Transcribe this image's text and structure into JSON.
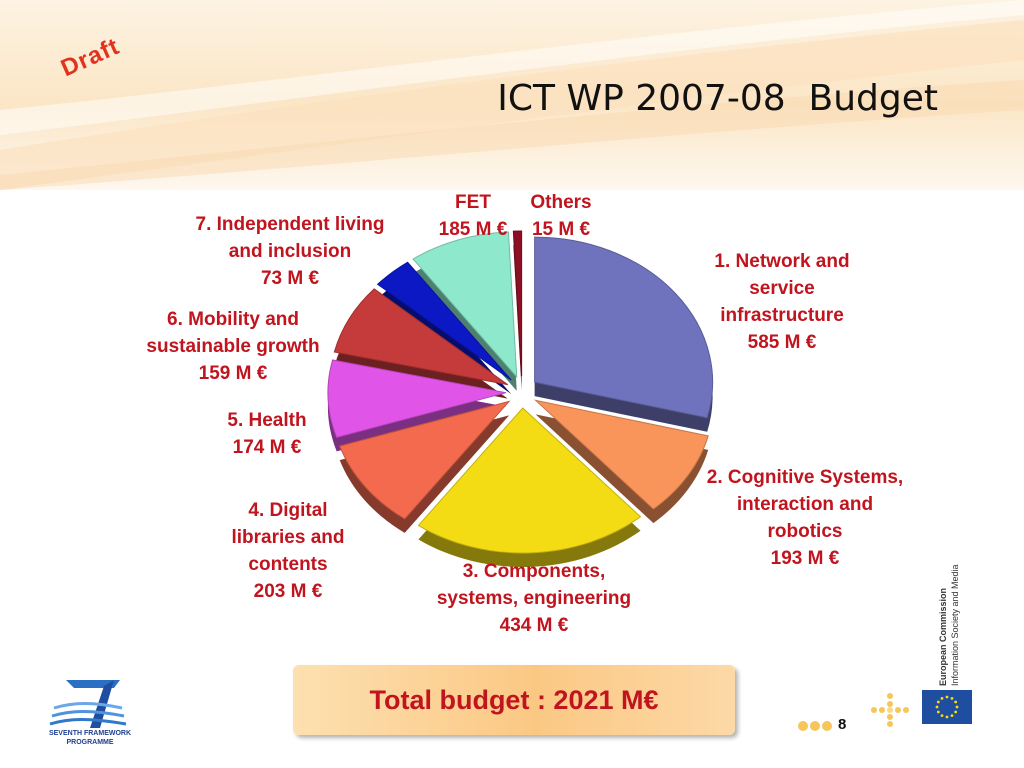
{
  "header": {
    "draft_label": "Draft",
    "title": "ICT WP 2007-08  Budget"
  },
  "chart_data": {
    "type": "pie",
    "title": "",
    "unit": "M €",
    "slices": [
      {
        "label": "1. Network and service infrastructure",
        "value": 585,
        "value_label": "585 M €",
        "color": "#6f73be"
      },
      {
        "label": "2. Cognitive Systems, interaction and robotics",
        "value": 193,
        "value_label": "193 M €",
        "color": "#f9945a"
      },
      {
        "label": "3. Components, systems, engineering",
        "value": 434,
        "value_label": "434 M €",
        "color": "#f4dc14"
      },
      {
        "label": "4. Digital libraries and contents",
        "value": 203,
        "value_label": "203 M €",
        "color": "#f46a4e"
      },
      {
        "label": "5. Health",
        "value": 174,
        "value_label": "174 M €",
        "color": "#e055e8"
      },
      {
        "label": "6. Mobility and sustainable growth",
        "value": 159,
        "value_label": "159 M €",
        "color": "#c53a3a"
      },
      {
        "label": "7. Independent living and inclusion",
        "value": 73,
        "value_label": "73 M €",
        "color": "#0c18c4"
      },
      {
        "label": "FET",
        "value": 185,
        "value_label": "185 M €",
        "color": "#8ee8cc"
      },
      {
        "label": "Others",
        "value": 15,
        "value_label": "15 M €",
        "color": "#8c0f24"
      }
    ]
  },
  "labels": {
    "s1": [
      "1. Network and",
      "service",
      "infrastructure",
      "585 M €"
    ],
    "s2": [
      "2. Cognitive Systems,",
      "interaction and",
      "robotics",
      "193 M €"
    ],
    "s3": [
      "3. Components,",
      "systems, engineering",
      "434 M €"
    ],
    "s4": [
      "4. Digital",
      "libraries and",
      "contents",
      "203 M €"
    ],
    "s5": [
      "5. Health",
      "174 M €"
    ],
    "s6": [
      "6. Mobility and",
      "sustainable growth",
      "159 M €"
    ],
    "s7": [
      "7. Independent living",
      "and inclusion",
      "73 M €"
    ],
    "fet": [
      "FET",
      "185 M €"
    ],
    "others": [
      "Others",
      "15 M €"
    ]
  },
  "total": {
    "text": "Total budget : 2021 M€"
  },
  "footer": {
    "page_number": "8",
    "fp7_caption": [
      "SEVENTH FRAMEWORK",
      "PROGRAMME"
    ],
    "ec_line1": "European Commission",
    "ec_line2": "Information Society and Media"
  }
}
